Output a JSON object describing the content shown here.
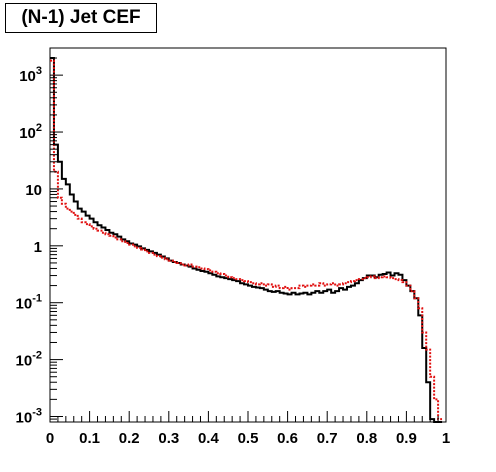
{
  "chart_data": {
    "type": "line",
    "title": "(N-1) Jet CEF",
    "xlabel": "",
    "ylabel": "",
    "xlim": [
      0,
      1
    ],
    "ylim": [
      0.0008,
      3000
    ],
    "yscale": "log",
    "grid": false,
    "x_ticks": [
      "0",
      "0.1",
      "0.2",
      "0.3",
      "0.4",
      "0.5",
      "0.6",
      "0.7",
      "0.8",
      "0.9",
      "1"
    ],
    "y_ticks": [
      {
        "value": 0.001,
        "base": "10",
        "exp": "-3"
      },
      {
        "value": 0.01,
        "base": "10",
        "exp": "-2"
      },
      {
        "value": 0.1,
        "base": "10",
        "exp": "-1"
      },
      {
        "value": 1,
        "base": "1",
        "exp": ""
      },
      {
        "value": 10,
        "base": "10",
        "exp": ""
      },
      {
        "value": 100,
        "base": "10",
        "exp": "2"
      },
      {
        "value": 1000,
        "base": "10",
        "exp": "3"
      }
    ],
    "series": [
      {
        "color": "#000000",
        "style": "solid",
        "x": [
          0.0,
          0.01,
          0.02,
          0.03,
          0.04,
          0.05,
          0.06,
          0.07,
          0.08,
          0.09,
          0.1,
          0.11,
          0.12,
          0.13,
          0.14,
          0.15,
          0.16,
          0.17,
          0.18,
          0.19,
          0.2,
          0.21,
          0.22,
          0.23,
          0.24,
          0.25,
          0.26,
          0.27,
          0.28,
          0.29,
          0.3,
          0.31,
          0.32,
          0.33,
          0.34,
          0.35,
          0.36,
          0.37,
          0.38,
          0.39,
          0.4,
          0.41,
          0.42,
          0.43,
          0.44,
          0.45,
          0.46,
          0.47,
          0.48,
          0.49,
          0.5,
          0.51,
          0.52,
          0.53,
          0.54,
          0.55,
          0.56,
          0.57,
          0.58,
          0.59,
          0.6,
          0.61,
          0.62,
          0.63,
          0.64,
          0.65,
          0.66,
          0.67,
          0.68,
          0.69,
          0.7,
          0.71,
          0.72,
          0.73,
          0.74,
          0.75,
          0.76,
          0.77,
          0.78,
          0.79,
          0.8,
          0.81,
          0.82,
          0.83,
          0.84,
          0.85,
          0.86,
          0.87,
          0.88,
          0.89,
          0.9,
          0.91,
          0.92,
          0.93,
          0.94,
          0.95,
          0.96,
          0.97,
          0.98
        ],
        "values": [
          2000,
          60,
          30,
          15,
          12,
          8,
          6,
          4.5,
          4,
          3.4,
          3,
          2.6,
          2.3,
          2.1,
          1.9,
          1.7,
          1.6,
          1.45,
          1.3,
          1.2,
          1.1,
          1.05,
          0.98,
          0.9,
          0.85,
          0.8,
          0.75,
          0.7,
          0.65,
          0.6,
          0.55,
          0.52,
          0.5,
          0.47,
          0.45,
          0.43,
          0.4,
          0.38,
          0.36,
          0.35,
          0.33,
          0.31,
          0.29,
          0.28,
          0.27,
          0.26,
          0.25,
          0.24,
          0.22,
          0.21,
          0.2,
          0.19,
          0.185,
          0.18,
          0.17,
          0.16,
          0.155,
          0.16,
          0.15,
          0.145,
          0.14,
          0.15,
          0.14,
          0.145,
          0.15,
          0.14,
          0.15,
          0.16,
          0.15,
          0.16,
          0.17,
          0.15,
          0.16,
          0.18,
          0.17,
          0.19,
          0.2,
          0.22,
          0.25,
          0.27,
          0.3,
          0.3,
          0.28,
          0.31,
          0.32,
          0.34,
          0.3,
          0.33,
          0.31,
          0.25,
          0.2,
          0.16,
          0.12,
          0.06,
          0.016,
          0.004,
          0.0009,
          0.0008,
          0.0008
        ]
      },
      {
        "color": "#e01010",
        "style": "dotted",
        "x": [
          0.0,
          0.01,
          0.02,
          0.03,
          0.04,
          0.05,
          0.06,
          0.07,
          0.08,
          0.09,
          0.1,
          0.11,
          0.12,
          0.13,
          0.14,
          0.15,
          0.16,
          0.17,
          0.18,
          0.19,
          0.2,
          0.21,
          0.22,
          0.23,
          0.24,
          0.25,
          0.26,
          0.27,
          0.28,
          0.29,
          0.3,
          0.31,
          0.32,
          0.33,
          0.34,
          0.35,
          0.36,
          0.37,
          0.38,
          0.39,
          0.4,
          0.41,
          0.42,
          0.43,
          0.44,
          0.45,
          0.46,
          0.47,
          0.48,
          0.49,
          0.5,
          0.51,
          0.52,
          0.53,
          0.54,
          0.55,
          0.56,
          0.57,
          0.58,
          0.59,
          0.6,
          0.61,
          0.62,
          0.63,
          0.64,
          0.65,
          0.66,
          0.67,
          0.68,
          0.69,
          0.7,
          0.71,
          0.72,
          0.73,
          0.74,
          0.75,
          0.76,
          0.77,
          0.78,
          0.79,
          0.8,
          0.81,
          0.82,
          0.83,
          0.84,
          0.85,
          0.86,
          0.87,
          0.88,
          0.89,
          0.9,
          0.91,
          0.92,
          0.93,
          0.94,
          0.95,
          0.96,
          0.97,
          0.98
        ],
        "values": [
          1800,
          20,
          7,
          5.5,
          4.5,
          4,
          3.5,
          3,
          2.6,
          2.4,
          2.2,
          2,
          1.85,
          1.7,
          1.6,
          1.5,
          1.4,
          1.3,
          1.2,
          1.12,
          1.05,
          0.98,
          0.92,
          0.86,
          0.8,
          0.75,
          0.7,
          0.66,
          0.62,
          0.58,
          0.55,
          0.52,
          0.5,
          0.47,
          0.45,
          0.47,
          0.43,
          0.42,
          0.4,
          0.39,
          0.37,
          0.35,
          0.33,
          0.32,
          0.3,
          0.28,
          0.27,
          0.26,
          0.25,
          0.24,
          0.23,
          0.22,
          0.21,
          0.22,
          0.2,
          0.21,
          0.19,
          0.2,
          0.18,
          0.19,
          0.17,
          0.18,
          0.18,
          0.2,
          0.19,
          0.2,
          0.21,
          0.2,
          0.22,
          0.2,
          0.21,
          0.22,
          0.2,
          0.21,
          0.22,
          0.23,
          0.24,
          0.25,
          0.26,
          0.27,
          0.28,
          0.29,
          0.27,
          0.28,
          0.29,
          0.28,
          0.27,
          0.26,
          0.25,
          0.23,
          0.2,
          0.16,
          0.12,
          0.08,
          0.03,
          0.015,
          0.005,
          0.002,
          0.0009
        ]
      }
    ]
  }
}
